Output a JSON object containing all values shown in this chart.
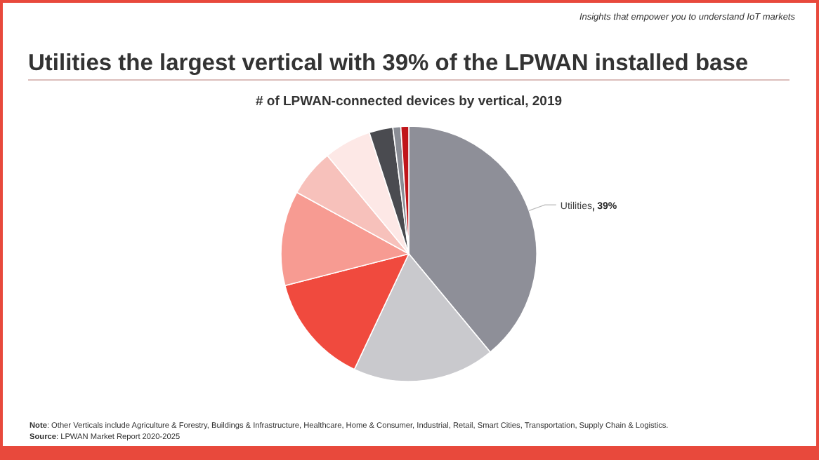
{
  "chart_data": {
    "type": "pie",
    "title": "Utilities the largest vertical with 39% of the LPWAN installed base",
    "subtitle": "# of LPWAN-connected devices by vertical, 2019",
    "categories": [
      "Utilities",
      null,
      null,
      null,
      null,
      null,
      null,
      null,
      null
    ],
    "values": [
      39,
      18,
      14,
      12,
      6,
      6,
      3,
      1,
      1
    ],
    "colors": [
      "#8e8f98",
      "#c9c9cd",
      "#f04a3e",
      "#f79b92",
      "#f7c1bb",
      "#fde8e6",
      "#4a4b50",
      "#8a8d95",
      "#c0161b"
    ],
    "value_labels": [
      "39%",
      null,
      null,
      null,
      null,
      null,
      null,
      null,
      null
    ],
    "annotations": [
      "Insights that empower you to understand IoT markets",
      "Note: Other Verticals include Agriculture & Forestry, Buildings & Infrastructure, Healthcare, Home & Consumer, Industrial, Retail, Smart Cities, Transportation, Supply Chain & Logistics.",
      "Source: LPWAN Market Report 2020-2025"
    ]
  }
}
